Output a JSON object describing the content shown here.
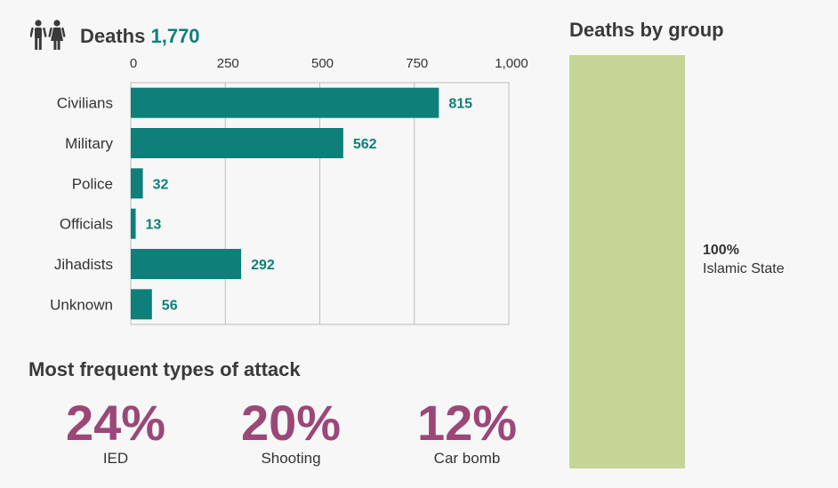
{
  "header": {
    "title": "Deaths",
    "total": "1,770"
  },
  "chart_data": {
    "type": "bar",
    "orientation": "horizontal",
    "title": "Deaths 1,770",
    "categories": [
      "Civilians",
      "Military",
      "Police",
      "Officials",
      "Jihadists",
      "Unknown"
    ],
    "values": [
      815,
      562,
      32,
      13,
      292,
      56
    ],
    "xlim": [
      0,
      1000
    ],
    "xticks": [
      0,
      250,
      500,
      750,
      1000
    ],
    "xtick_labels": [
      "0",
      "250",
      "500",
      "750",
      "1,000"
    ],
    "grid": true,
    "bar_color": "#0e7f79"
  },
  "attacks": {
    "title": "Most frequent types of attack",
    "items": [
      {
        "value": "24%",
        "label": "IED"
      },
      {
        "value": "20%",
        "label": "Shooting"
      },
      {
        "value": "12%",
        "label": "Car bomb"
      }
    ],
    "color": "#9a4877"
  },
  "groups": {
    "title": "Deaths by group",
    "items": [
      {
        "percent": "100%",
        "name": "Islamic State",
        "share": 1.0,
        "color": "#c5d596"
      }
    ]
  }
}
